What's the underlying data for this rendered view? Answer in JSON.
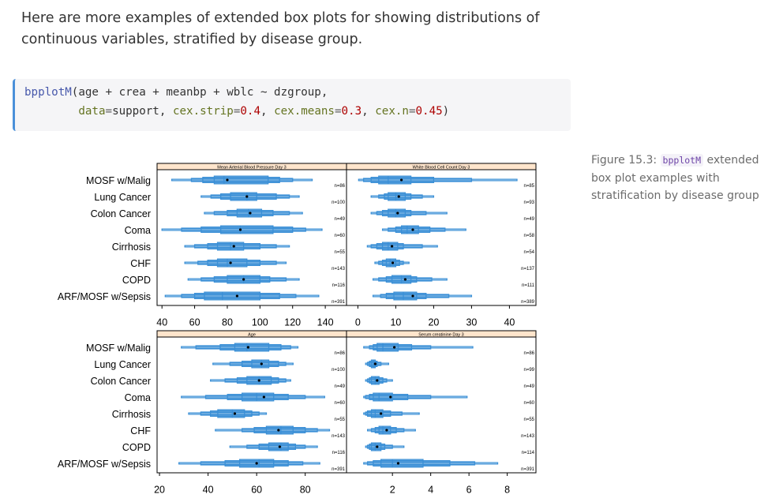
{
  "intro_text": "Here are more examples of extended box plots for showing distributions of continuous variables, stratified by disease group.",
  "code": {
    "fn": "bpplotM",
    "line1_rest": "(age + crea + meanbp + wblc ~ dzgroup,",
    "indent": "        ",
    "data_arg": "data",
    "eq": "=",
    "data_val": "support",
    "sep": ", ",
    "cex_strip_arg": "cex.strip",
    "cex_strip_val": "0.4",
    "cex_means_arg": "cex.means",
    "cex_means_val": "0.3",
    "cex_n_arg": "cex.n",
    "cex_n_val": "0.45",
    "close": ")"
  },
  "caption": {
    "label": "Figure 15.3: ",
    "code": "bpplotM",
    "text": " extended box plot examples with stratification by disease group"
  },
  "colors": {
    "box": "#3a8fd6",
    "strip": "#ffe5cc",
    "frame": "#000000",
    "mean_dot": "#000000"
  },
  "chart_data": [
    {
      "type": "box",
      "title": "Mean Arterial Blood Pressure Day 3",
      "groups": [
        "MOSF w/Malig",
        "Lung Cancer",
        "Colon Cancer",
        "Coma",
        "Cirrhosis",
        "CHF",
        "COPD",
        "ARF/MOSF w/Sepsis"
      ],
      "xlim": [
        37,
        153
      ],
      "xticks": [
        40,
        60,
        80,
        100,
        120,
        140
      ],
      "grid": false,
      "stats": [
        {
          "n": "n=86",
          "q": [
            46,
            58,
            65,
            72,
            78,
            105,
            112,
            120,
            132
          ],
          "mean": 80
        },
        {
          "n": "n=100",
          "q": [
            64,
            70,
            76,
            82,
            92,
            98,
            110,
            118,
            124
          ],
          "mean": 92
        },
        {
          "n": "n=49",
          "q": [
            66,
            72,
            80,
            86,
            93,
            101,
            108,
            118,
            126
          ],
          "mean": 94
        },
        {
          "n": "n=60",
          "q": [
            40,
            52,
            64,
            76,
            88,
            108,
            120,
            128,
            138
          ],
          "mean": 88
        },
        {
          "n": "n=55",
          "q": [
            54,
            60,
            68,
            74,
            82,
            90,
            100,
            110,
            118
          ],
          "mean": 84
        },
        {
          "n": "n=143",
          "q": [
            54,
            62,
            68,
            74,
            80,
            92,
            100,
            110,
            116
          ],
          "mean": 82
        },
        {
          "n": "n=116",
          "q": [
            56,
            64,
            72,
            80,
            90,
            100,
            106,
            116,
            124
          ],
          "mean": 90
        },
        {
          "n": "n=391",
          "q": [
            42,
            52,
            60,
            66,
            77,
            100,
            112,
            122,
            136
          ],
          "mean": 86
        }
      ]
    },
    {
      "type": "box",
      "title": "White Blood Cell Count Day 3",
      "groups": [
        "MOSF w/Malig",
        "Lung Cancer",
        "Colon Cancer",
        "Coma",
        "Cirrhosis",
        "CHF",
        "COPD",
        "ARF/MOSF w/Sepsis"
      ],
      "xlim": [
        -3,
        47
      ],
      "xticks": [
        0,
        10,
        20,
        30,
        40
      ],
      "grid": false,
      "stats": [
        {
          "n": "n=85",
          "q": [
            0.2,
            1.5,
            3.5,
            5.5,
            8,
            14,
            20,
            30,
            42
          ],
          "mean": 11.5
        },
        {
          "n": "n=93",
          "q": [
            3.5,
            5.5,
            7,
            8,
            10,
            12.5,
            14,
            17,
            20
          ],
          "mean": 10.8
        },
        {
          "n": "n=49",
          "q": [
            3.5,
            5,
            6.5,
            8,
            10,
            12.5,
            14,
            18,
            23.5
          ],
          "mean": 10.5
        },
        {
          "n": "n=58",
          "q": [
            6.5,
            8,
            10,
            11.5,
            13,
            16,
            19,
            23,
            28.5
          ],
          "mean": 14.5
        },
        {
          "n": "n=54",
          "q": [
            2.5,
            3.5,
            5,
            6.5,
            8,
            10.5,
            12,
            17,
            21
          ],
          "mean": 9
        },
        {
          "n": "n=137",
          "q": [
            4.5,
            5.5,
            6.5,
            7.5,
            8.5,
            10,
            11,
            12,
            13.5
          ],
          "mean": 9.2
        },
        {
          "n": "n=111",
          "q": [
            4,
            5.5,
            7.5,
            9,
            11.5,
            14,
            15.5,
            19.5,
            23.5
          ],
          "mean": 12.5
        },
        {
          "n": "n=389",
          "q": [
            4,
            6,
            7.5,
            9.5,
            12,
            15.5,
            18,
            24,
            30
          ],
          "mean": 14.5
        }
      ]
    },
    {
      "type": "box",
      "title": "Age",
      "groups": [
        "MOSF w/Malig",
        "Lung Cancer",
        "Colon Cancer",
        "Coma",
        "Cirrhosis",
        "CHF",
        "COPD",
        "ARF/MOSF w/Sepsis"
      ],
      "xlim": [
        19,
        97
      ],
      "xticks": [
        20,
        40,
        60,
        80
      ],
      "grid": false,
      "stats": [
        {
          "n": "n=86",
          "q": [
            29,
            35,
            45,
            51,
            56,
            65,
            70,
            74,
            77
          ],
          "mean": 56.5
        },
        {
          "n": "n=100",
          "q": [
            42,
            49,
            54,
            58,
            62,
            65,
            69,
            72,
            75
          ],
          "mean": 62
        },
        {
          "n": "n=49",
          "q": [
            41,
            47,
            52,
            56,
            61,
            66,
            69,
            72,
            74
          ],
          "mean": 61
        },
        {
          "n": "n=60",
          "q": [
            29,
            39,
            48,
            54,
            60,
            67,
            73,
            80,
            88
          ],
          "mean": 63
        },
        {
          "n": "n=55",
          "q": [
            32,
            37,
            41,
            44,
            50,
            55,
            58,
            61,
            64
          ],
          "mean": 51
        },
        {
          "n": "n=143",
          "q": [
            43,
            54,
            59,
            64,
            70,
            75,
            80,
            85,
            90
          ],
          "mean": 69
        },
        {
          "n": "n=116",
          "q": [
            49,
            56,
            61,
            65,
            70,
            73,
            76,
            80,
            85
          ],
          "mean": 69.5
        },
        {
          "n": "n=391",
          "q": [
            28,
            37,
            47,
            53,
            61,
            67,
            73,
            79,
            86
          ],
          "mean": 60
        }
      ]
    },
    {
      "type": "box",
      "title": "Serum creatinine Day 3",
      "groups": [
        "MOSF w/Malig",
        "Lung Cancer",
        "Colon Cancer",
        "Coma",
        "Cirrhosis",
        "CHF",
        "COPD",
        "ARF/MOSF w/Sepsis"
      ],
      "xlim": [
        -0.4,
        9.5
      ],
      "xticks": [
        2,
        4,
        6,
        8
      ],
      "grid": false,
      "stats": [
        {
          "n": "n=86",
          "q": [
            0.5,
            0.8,
            1.0,
            1.2,
            1.5,
            2.3,
            3.0,
            4.0,
            6.2
          ],
          "mean": 2.1
        },
        {
          "n": "n=99",
          "q": [
            0.6,
            0.7,
            0.8,
            0.9,
            1.0,
            1.1,
            1.2,
            1.4,
            1.8
          ],
          "mean": 1.1
        },
        {
          "n": "n=49",
          "q": [
            0.6,
            0.7,
            0.8,
            0.9,
            1.1,
            1.3,
            1.5,
            1.7,
            2.0
          ],
          "mean": 1.2
        },
        {
          "n": "n=60",
          "q": [
            0.5,
            0.6,
            0.8,
            1.0,
            1.3,
            2.0,
            2.8,
            4.0,
            5.9
          ],
          "mean": 1.9
        },
        {
          "n": "n=55",
          "q": [
            0.5,
            0.6,
            0.7,
            0.9,
            1.1,
            1.5,
            1.9,
            2.5,
            3.4
          ],
          "mean": 1.4
        },
        {
          "n": "n=143",
          "q": [
            0.7,
            0.9,
            1.1,
            1.3,
            1.5,
            1.9,
            2.2,
            2.6,
            3.2
          ],
          "mean": 1.7
        },
        {
          "n": "n=114",
          "q": [
            0.6,
            0.7,
            0.8,
            0.9,
            1.1,
            1.4,
            1.6,
            2.0,
            2.6
          ],
          "mean": 1.2
        },
        {
          "n": "n=391",
          "q": [
            0.5,
            0.7,
            1.0,
            1.4,
            2.0,
            3.6,
            5.0,
            6.3,
            7.5
          ],
          "mean": 2.3
        }
      ]
    }
  ]
}
